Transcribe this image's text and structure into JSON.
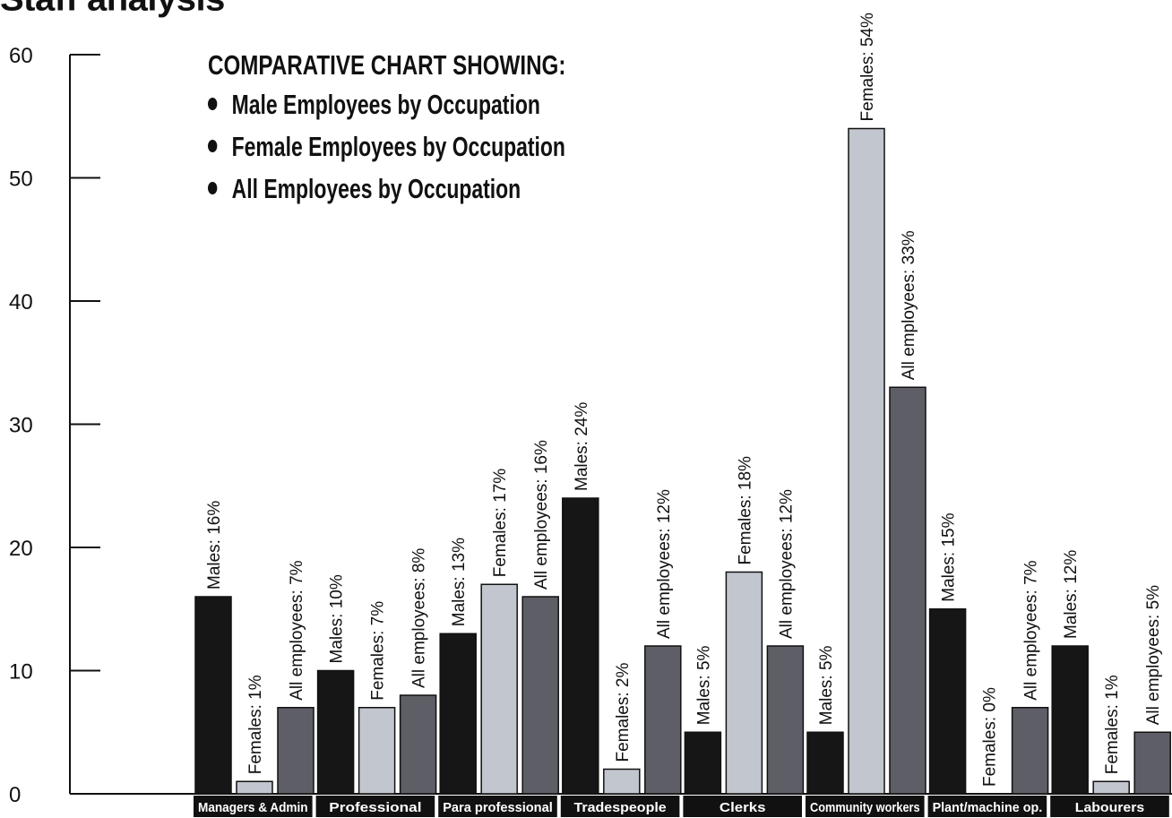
{
  "header": {
    "title": "Staff analysis"
  },
  "legend": {
    "heading": "COMPARATIVE CHART SHOWING:",
    "items": [
      "Male Employees by Occupation",
      "Female Employees by Occupation",
      "All Employees by Occupation"
    ]
  },
  "colors": {
    "males": "#161616",
    "females": "#c2c6cf",
    "all_employees": "#5e5f66",
    "category_label_bg": "#111111",
    "category_label_text": "#ffffff",
    "axis": "#111111"
  },
  "chart_data": {
    "type": "bar",
    "title": "COMPARATIVE CHART SHOWING:",
    "xlabel": "",
    "ylabel": "",
    "ylim": [
      0,
      60
    ],
    "yticks": [
      0,
      10,
      20,
      30,
      40,
      50,
      60
    ],
    "grid": false,
    "legend_placement": "top-left",
    "categories": [
      "Managers & Admin",
      "Professional",
      "Para professional",
      "Tradespeople",
      "Clerks",
      "Community workers",
      "Plant/machine op.",
      "Labourers"
    ],
    "series": [
      {
        "name": "Males",
        "values": [
          16,
          10,
          13,
          24,
          5,
          5,
          15,
          12
        ],
        "labels": [
          "Males: 16%",
          "Males: 10%",
          "Males: 13%",
          "Males: 24%",
          "Males: 5%",
          "Males: 5%",
          "Males: 15%",
          "Males: 12%"
        ]
      },
      {
        "name": "Females",
        "values": [
          1,
          7,
          17,
          2,
          18,
          54,
          0,
          1
        ],
        "labels": [
          "Females: 1%",
          "Females: 7%",
          "Females: 17%",
          "Females: 2%",
          "Females: 18%",
          "Females: 54%",
          "Females: 0%",
          "Females: 1%"
        ]
      },
      {
        "name": "All employees",
        "values": [
          7,
          8,
          16,
          12,
          12,
          33,
          7,
          5
        ],
        "labels": [
          "All employees: 7%",
          "All employees: 8%",
          "All employees: 16%",
          "All employees: 12%",
          "All employees: 12%",
          "All employees: 33%",
          "All employees: 7%",
          "All employees: 5%"
        ]
      }
    ]
  }
}
